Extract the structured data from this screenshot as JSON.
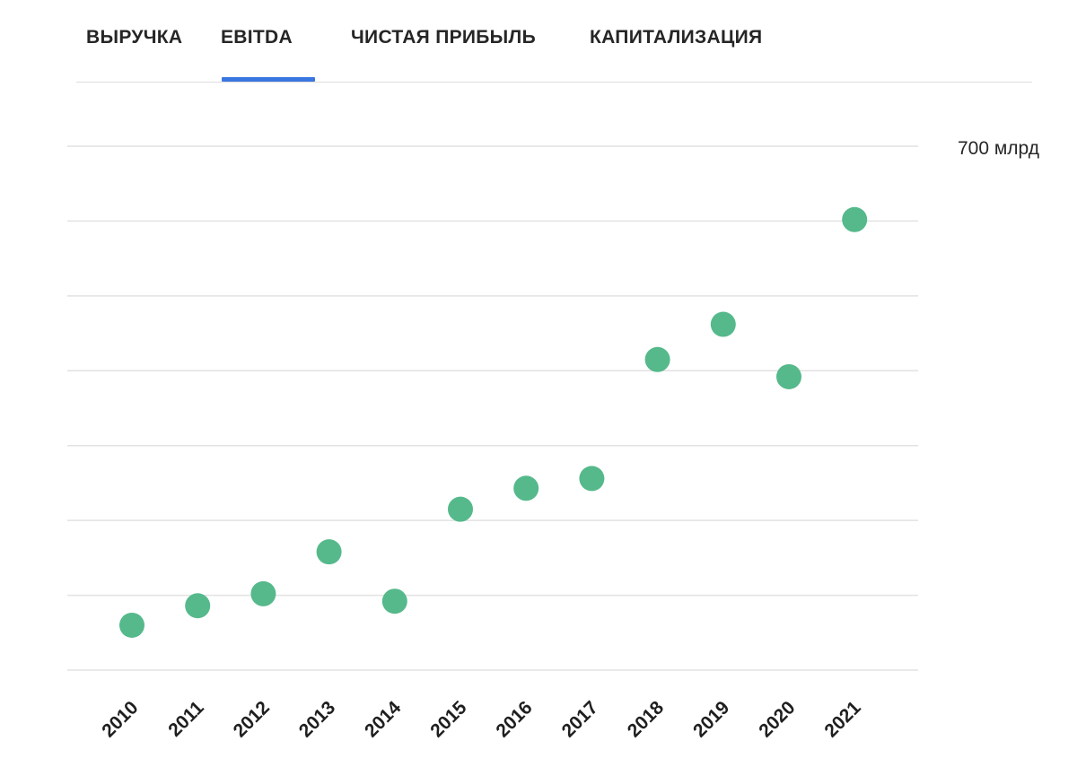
{
  "tabs": [
    {
      "label": "ВЫРУЧКА",
      "active": false
    },
    {
      "label": "EBITDA",
      "active": true
    },
    {
      "label": "ЧИСТАЯ ПРИБЫЛЬ",
      "active": false
    },
    {
      "label": "КАПИТАЛИЗАЦИЯ",
      "active": false
    }
  ],
  "colors": {
    "accent": "#3a76e0",
    "point": "#55b98b",
    "grid": "#e2e2e2"
  },
  "chart_data": {
    "type": "scatter",
    "title": "EBITDA",
    "y_unit": "млрд",
    "y_max_label": "700 млрд",
    "ylim": [
      0,
      700
    ],
    "y_grid_step": 100,
    "grid": true,
    "categories": [
      "2010",
      "2011",
      "2012",
      "2013",
      "2014",
      "2015",
      "2016",
      "2017",
      "2018",
      "2019",
      "2020",
      "2021"
    ],
    "values": [
      60,
      86,
      102,
      158,
      92,
      215,
      243,
      256,
      415,
      462,
      392,
      602
    ]
  }
}
